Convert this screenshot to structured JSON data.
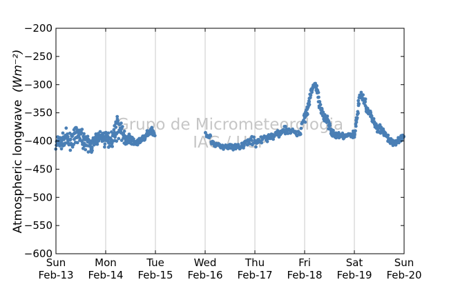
{
  "colors": {
    "points": "#4a7fb5",
    "grid": "#c8c8c8",
    "axis": "#000000",
    "watermark": "#bdbdbd"
  },
  "chart_data": {
    "type": "scatter",
    "ylabel": "Atmospheric longwave",
    "ylabel_unit": "(Wm⁻²)",
    "ylim": [
      -600,
      -200
    ],
    "yticks": [
      -200,
      -250,
      -300,
      -350,
      -400,
      -450,
      -500,
      -550,
      -600
    ],
    "ytick_labels": [
      "−200",
      "−250",
      "−300",
      "−350",
      "−400",
      "−450",
      "−500",
      "−550",
      "−600"
    ],
    "xlim": [
      "Feb-13",
      "Feb-20"
    ],
    "xticks": [
      {
        "day": "Sun",
        "date": "Feb-13"
      },
      {
        "day": "Mon",
        "date": "Feb-14"
      },
      {
        "day": "Tue",
        "date": "Feb-15"
      },
      {
        "day": "Wed",
        "date": "Feb-16"
      },
      {
        "day": "Thu",
        "date": "Feb-17"
      },
      {
        "day": "Fri",
        "date": "Feb-18"
      },
      {
        "day": "Sat",
        "date": "Feb-19"
      },
      {
        "day": "Sun",
        "date": "Feb-20"
      }
    ],
    "grid": "vertical",
    "watermark": [
      "Grupo de Micrometeorologia",
      "IAG / USP"
    ],
    "series": [
      {
        "x_units": "days",
        "segments": [
          {
            "x": [
              0.0,
              0.05,
              0.1,
              0.15,
              0.2,
              0.25,
              0.3,
              0.35,
              0.4,
              0.45,
              0.5,
              0.55,
              0.6,
              0.65,
              0.7,
              0.75,
              0.8,
              0.85,
              0.9,
              0.95,
              1.0,
              1.05,
              1.1,
              1.15,
              1.2,
              1.25,
              1.3,
              1.35,
              1.4,
              1.45,
              1.5,
              1.55,
              1.6,
              1.65,
              1.7,
              1.75,
              1.8,
              1.85,
              1.9,
              1.95,
              2.0
            ],
            "y": [
              -410,
              -400,
              -405,
              -398,
              -392,
              -402,
              -400,
              -395,
              -390,
              -388,
              -392,
              -398,
              -400,
              -405,
              -410,
              -405,
              -400,
              -395,
              -392,
              -395,
              -395,
              -398,
              -396,
              -392,
              -380,
              -372,
              -378,
              -390,
              -398,
              -395,
              -398,
              -400,
              -402,
              -405,
              -400,
              -395,
              -392,
              -385,
              -382,
              -383,
              -390
            ],
            "spread": [
              22,
              20,
              20,
              18,
              18,
              18,
              20,
              22,
              24,
              22,
              20,
              18,
              18,
              20,
              22,
              20,
              18,
              16,
              16,
              18,
              20,
              22,
              22,
              22,
              26,
              28,
              24,
              20,
              16,
              12,
              10,
              10,
              10,
              10,
              10,
              8,
              8,
              8,
              8,
              8,
              8
            ]
          },
          {
            "x": [
              3.0,
              3.1,
              3.2,
              3.3,
              3.4,
              3.5,
              3.6,
              3.7,
              3.8,
              3.9,
              4.0,
              4.1,
              4.2,
              4.3,
              4.4,
              4.5,
              4.6,
              4.7,
              4.8,
              4.9,
              5.0,
              5.05,
              5.1,
              5.15,
              5.2,
              5.25,
              5.3,
              5.35,
              5.4,
              5.45,
              5.5,
              5.55,
              5.6,
              5.65,
              5.7,
              5.75,
              5.8,
              5.85,
              5.9,
              5.95,
              6.0,
              6.05,
              6.1,
              6.15,
              6.2,
              6.25,
              6.3,
              6.35,
              6.4,
              6.45,
              6.5,
              6.55,
              6.6,
              6.65,
              6.7,
              6.75,
              6.8,
              6.85,
              6.9,
              6.95,
              7.0
            ],
            "y": [
              -385,
              -395,
              -405,
              -410,
              -412,
              -410,
              -412,
              -410,
              -405,
              -400,
              -400,
              -402,
              -395,
              -392,
              -390,
              -385,
              -380,
              -382,
              -385,
              -388,
              -355,
              -345,
              -325,
              -305,
              -302,
              -308,
              -340,
              -352,
              -358,
              -362,
              -370,
              -385,
              -390,
              -392,
              -390,
              -390,
              -392,
              -390,
              -388,
              -390,
              -388,
              -360,
              -322,
              -320,
              -330,
              -340,
              -350,
              -358,
              -368,
              -375,
              -378,
              -380,
              -385,
              -392,
              -398,
              -402,
              -405,
              -400,
              -398,
              -395,
              -390
            ],
            "spread": [
              10,
              12,
              12,
              10,
              8,
              8,
              10,
              12,
              14,
              14,
              12,
              12,
              12,
              12,
              12,
              10,
              10,
              10,
              8,
              8,
              18,
              20,
              16,
              10,
              8,
              12,
              18,
              16,
              14,
              14,
              16,
              12,
              8,
              6,
              6,
              6,
              6,
              6,
              6,
              6,
              10,
              16,
              12,
              10,
              14,
              16,
              14,
              12,
              10,
              10,
              10,
              10,
              10,
              8,
              8,
              8,
              8,
              8,
              8,
              8,
              10
            ]
          }
        ]
      }
    ]
  }
}
